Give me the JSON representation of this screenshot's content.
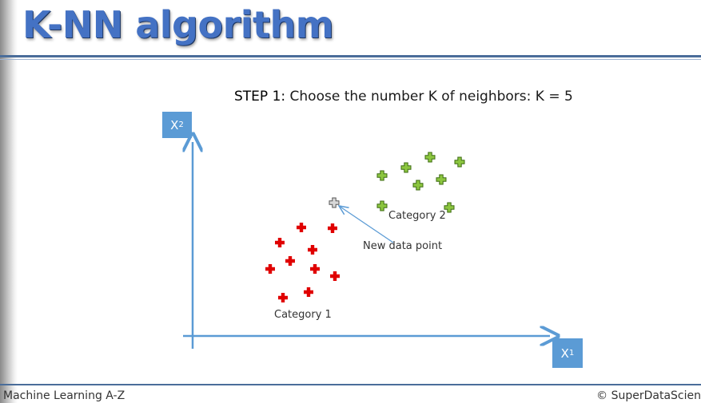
{
  "slide": {
    "title": "K-NN algorithm",
    "step_prefix": "STEP 1:",
    "step_text": " Choose the number K of neighbors: K = 5"
  },
  "axes": {
    "x1_letter": "X",
    "x1_sub": "1",
    "x2_letter": "X",
    "x2_sub": "2"
  },
  "labels": {
    "category1": "Category 1",
    "category2": "Category 2",
    "new_point": "New data point"
  },
  "colors": {
    "category1": "#e00000",
    "category2": "#8cc63f",
    "new_point": "#b0b0b0",
    "axis": "#5b9bd5"
  },
  "points": {
    "category1": [
      [
        377,
        285
      ],
      [
        416,
        286
      ],
      [
        350,
        304
      ],
      [
        391,
        313
      ],
      [
        363,
        327
      ],
      [
        338,
        337
      ],
      [
        394,
        337
      ],
      [
        419,
        346
      ],
      [
        386,
        366
      ],
      [
        354,
        373
      ]
    ],
    "category2": [
      [
        538,
        197
      ],
      [
        575,
        203
      ],
      [
        508,
        210
      ],
      [
        478,
        220
      ],
      [
        552,
        225
      ],
      [
        523,
        232
      ],
      [
        478,
        258
      ],
      [
        562,
        260
      ]
    ],
    "new_point": [
      418,
      254
    ]
  },
  "footer": {
    "left": "Machine Learning A-Z",
    "right": "© SuperDataScien"
  }
}
